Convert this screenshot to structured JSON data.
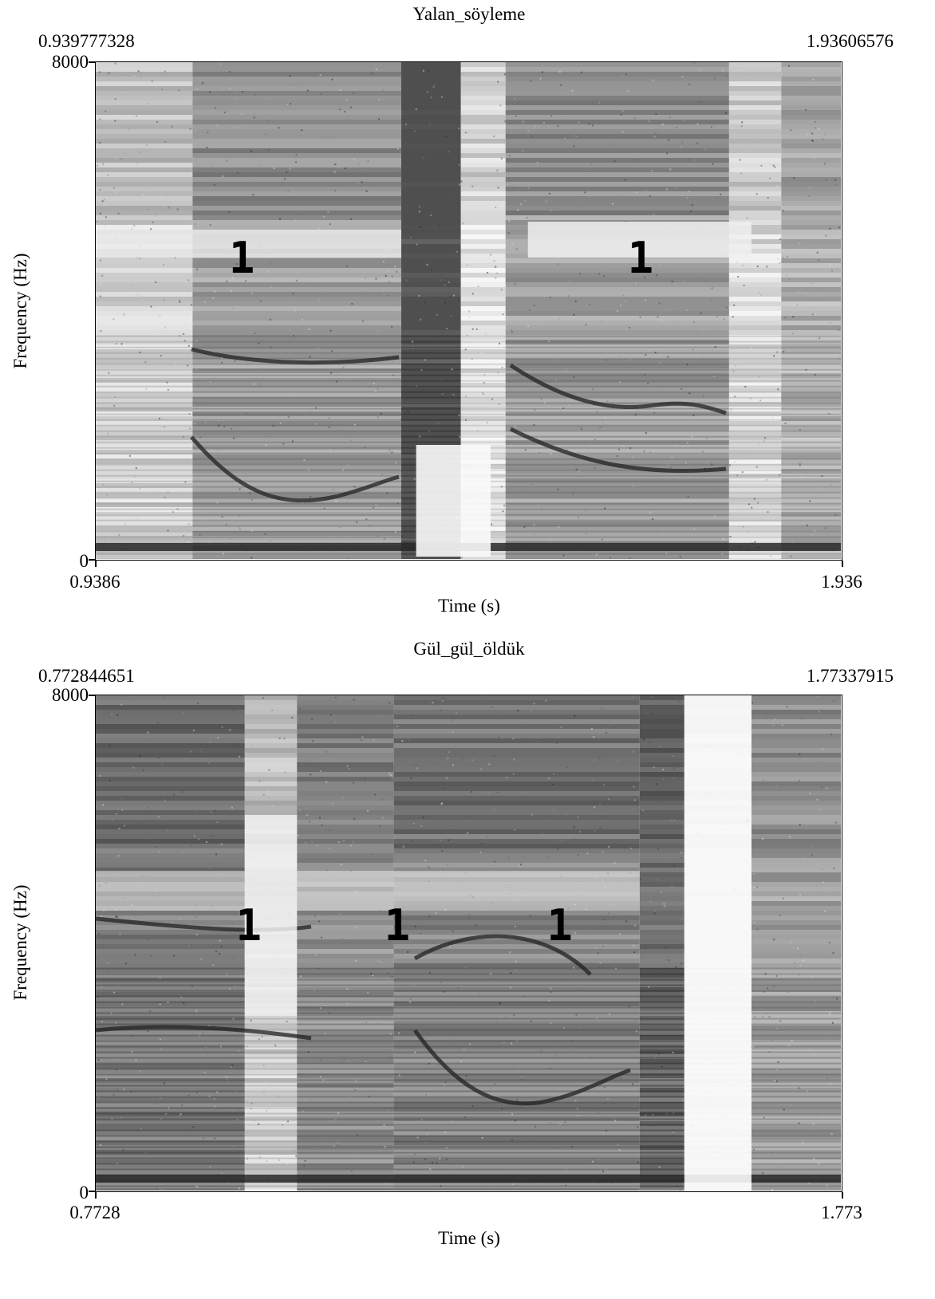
{
  "figures": [
    {
      "title": "Yalan_söyleme",
      "corner_left": "0.939777328",
      "corner_right": "1.93606576",
      "y_top": "8000",
      "y_bottom": "0",
      "x_left": "0.9386",
      "x_right": "1.936",
      "ylabel": "Frequency (Hz)",
      "xlabel": "Time (s)",
      "marks": [
        {
          "label": "1",
          "time": 1.134,
          "freq": 4850
        },
        {
          "label": "1",
          "time": 1.667,
          "freq": 4850
        }
      ]
    },
    {
      "title": "Gül_gül_öldük",
      "corner_left": "0.772844651",
      "corner_right": "1.77337915",
      "y_top": "8000",
      "y_bottom": "0",
      "x_left": "0.7728",
      "x_right": "1.773",
      "ylabel": "Frequency (Hz)",
      "xlabel": "Time (s)",
      "marks": [
        {
          "label": "1",
          "time": 0.978,
          "freq": 4280
        },
        {
          "label": "1",
          "time": 1.177,
          "freq": 4280
        },
        {
          "label": "1",
          "time": 1.395,
          "freq": 4280
        }
      ]
    }
  ],
  "chart_data": [
    {
      "type": "heatmap",
      "title": "Yalan_söyleme",
      "xlabel": "Time (s)",
      "ylabel": "Frequency (Hz)",
      "xlim": [
        0.9386,
        1.936
      ],
      "ylim": [
        0,
        8000
      ],
      "colormap": "grayscale (dark = high energy)",
      "annotations": [
        "1",
        "1"
      ]
    },
    {
      "type": "heatmap",
      "title": "Gül_gül_öldük",
      "xlabel": "Time (s)",
      "ylabel": "Frequency (Hz)",
      "xlim": [
        0.7728,
        1.773
      ],
      "ylim": [
        0,
        8000
      ],
      "colormap": "grayscale (dark = high energy)",
      "annotations": [
        "1",
        "1",
        "1"
      ]
    }
  ]
}
